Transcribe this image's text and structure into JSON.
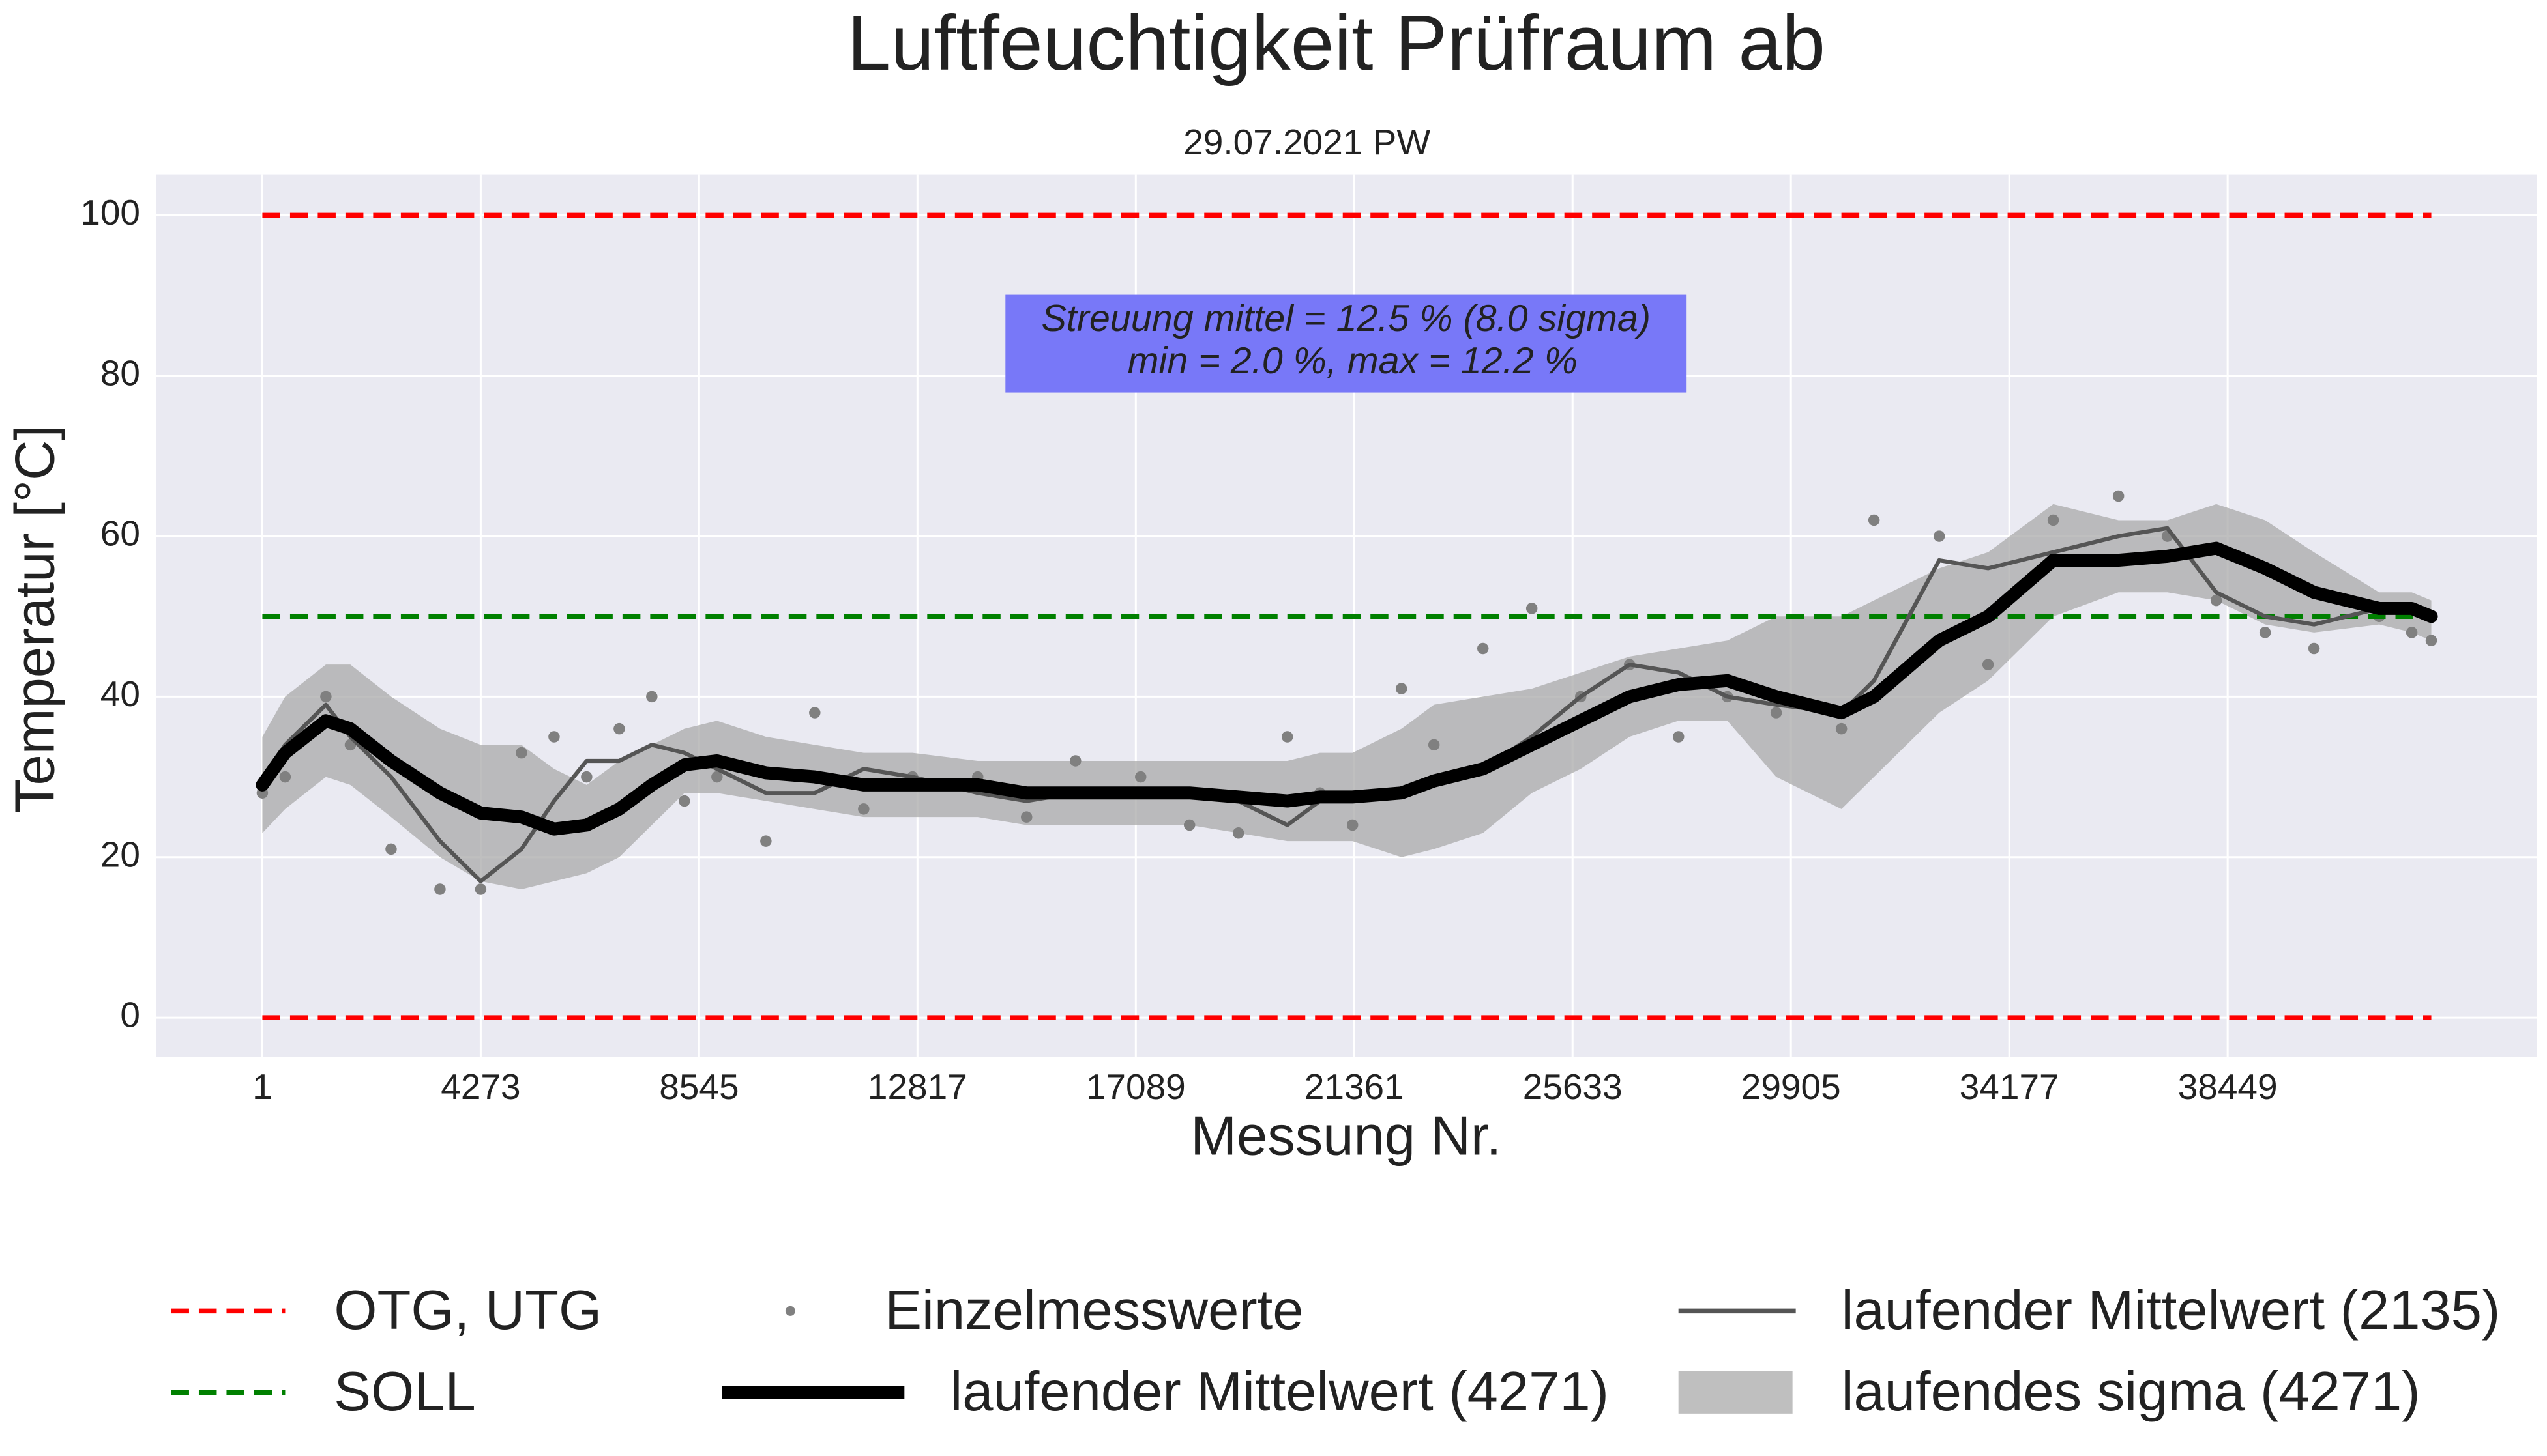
{
  "chart_data": {
    "type": "line",
    "title": "Luftfeuchtigkeit Prüfraum ab",
    "subtitle": "29.07.2021 PW",
    "xlabel": "Messung Nr.",
    "ylabel": "Temperatur [°C]",
    "xlim": [
      -2071,
      44505
    ],
    "ylim": [
      -4.9,
      105.1
    ],
    "xticks": [
      1,
      4273,
      8545,
      12817,
      17089,
      21361,
      25633,
      29905,
      34177,
      38449
    ],
    "yticks": [
      0,
      20,
      40,
      60,
      80,
      100
    ],
    "grid": true,
    "hline_x": [
      1,
      42433
    ],
    "hlines": [
      {
        "name": "OTG, UTG",
        "color": "#ff0000",
        "y": [
          100,
          0
        ]
      },
      {
        "name": "SOLL",
        "color": "#008000",
        "y": [
          50
        ]
      }
    ],
    "x": [
      1,
      447,
      1244,
      1723,
      2520,
      3476,
      4273,
      5070,
      5708,
      6345,
      6983,
      7620,
      8258,
      8895,
      9852,
      10808,
      11765,
      12721,
      13996,
      14952,
      15909,
      17184,
      18140,
      19097,
      20053,
      20691,
      21328,
      22285,
      22922,
      23879,
      24835,
      25792,
      26748,
      27705,
      28661,
      29617,
      30893,
      31530,
      32806,
      33762,
      35037,
      36313,
      37269,
      38226,
      39182,
      40138,
      41413,
      42051,
      42433
    ],
    "band": {
      "name": "laufendes sigma (4271)",
      "color": "#a9a9a9",
      "lower": [
        23,
        26,
        30,
        29,
        25,
        20,
        17,
        16,
        17,
        18,
        20,
        24,
        28,
        28,
        27,
        26,
        25,
        25,
        25,
        24,
        24,
        24,
        24,
        23,
        22,
        22,
        22,
        20,
        21,
        23,
        28,
        31,
        35,
        37,
        37,
        30,
        26,
        30,
        38,
        42,
        50,
        53,
        53,
        52,
        49,
        48,
        49,
        48,
        47
      ],
      "upper": [
        35,
        40,
        44,
        44,
        40,
        36,
        34,
        34,
        31,
        29,
        32,
        34,
        36,
        37,
        35,
        34,
        33,
        33,
        32,
        32,
        32,
        32,
        32,
        32,
        32,
        33,
        33,
        36,
        39,
        40,
        41,
        43,
        45,
        46,
        47,
        50,
        50,
        52,
        56,
        58,
        64,
        62,
        62,
        64,
        62,
        58,
        53,
        53,
        52
      ]
    },
    "scatter": {
      "name": "Einzelmesswerte",
      "color": "#808080",
      "values": [
        28,
        30,
        40,
        34,
        21,
        16,
        16,
        33,
        35,
        30,
        36,
        40,
        27,
        30,
        22,
        38,
        26,
        30,
        30,
        25,
        32,
        30,
        24,
        23,
        35,
        28,
        24,
        41,
        34,
        46,
        51,
        40,
        44,
        35,
        40,
        38,
        36,
        62,
        60,
        44,
        62,
        65,
        60,
        52,
        48,
        46,
        50,
        48,
        47
      ]
    },
    "series": [
      {
        "name": "laufender Mittelwert (4271)",
        "color": "#000000",
        "values": [
          29,
          33,
          37,
          36,
          32,
          28,
          25.5,
          25,
          23.5,
          24,
          26,
          29,
          31.5,
          32,
          30.5,
          30,
          29,
          29,
          29,
          28,
          28,
          28,
          28,
          27.5,
          27,
          27.5,
          27.5,
          28,
          29.5,
          31,
          34,
          37,
          40,
          41.5,
          42,
          40,
          38,
          40,
          47,
          50,
          57,
          57,
          57.5,
          58.5,
          56,
          53,
          51,
          51,
          50
        ]
      },
      {
        "name": "laufender Mittelwert (2135)",
        "color": "#555555",
        "values": [
          29,
          34,
          39,
          35,
          30,
          22,
          17,
          21,
          27,
          32,
          32,
          34,
          33,
          31,
          28,
          28,
          31,
          30,
          28,
          27,
          28,
          28,
          28,
          27,
          24,
          27,
          27,
          28,
          29,
          31,
          35,
          40,
          44,
          43,
          40,
          39,
          38,
          42,
          57,
          56,
          58,
          60,
          61,
          53,
          50,
          49,
          51,
          51,
          50
        ]
      }
    ],
    "annotation": [
      "Streuung mittel = 12.5 % (8.0 sigma)",
      "min = 2.0 %,   max = 12.2 %"
    ]
  }
}
